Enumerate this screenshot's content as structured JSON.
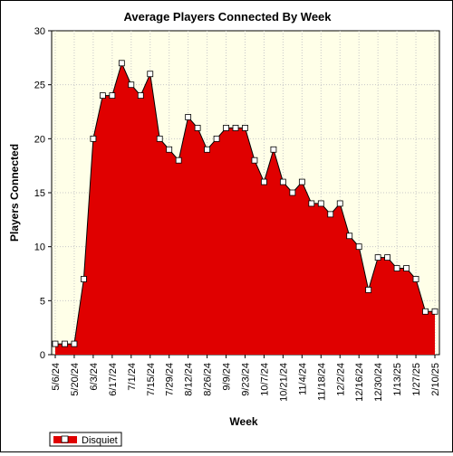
{
  "chart_data": {
    "type": "area",
    "title": "Average Players Connected By Week",
    "xlabel": "Week",
    "ylabel": "Players Connected",
    "ylim": [
      0,
      30
    ],
    "yticks": [
      0,
      5,
      10,
      15,
      20,
      25,
      30
    ],
    "grid": true,
    "legend_position": "bottom-left",
    "xtick_labels": [
      "5/6/24",
      "5/20/24",
      "6/3/24",
      "6/17/24",
      "7/1/24",
      "7/15/24",
      "7/29/24",
      "8/12/24",
      "8/26/24",
      "9/9/24",
      "9/23/24",
      "10/7/24",
      "10/21/24",
      "11/4/24",
      "11/18/24",
      "12/2/24",
      "12/16/24",
      "12/30/24",
      "1/13/25",
      "1/27/25",
      "2/10/25"
    ],
    "series": [
      {
        "name": "Disquiet",
        "color": "#e00000",
        "values": [
          1,
          1,
          1,
          7,
          20,
          24,
          24,
          27,
          25,
          24,
          26,
          20,
          19,
          18,
          22,
          21,
          19,
          20,
          21,
          21,
          21,
          18,
          16,
          19,
          16,
          15,
          16,
          14,
          14,
          13,
          14,
          11,
          10,
          6,
          9,
          9,
          8,
          8,
          7,
          4,
          4
        ]
      }
    ]
  }
}
